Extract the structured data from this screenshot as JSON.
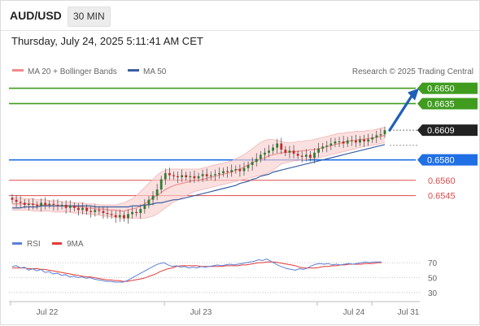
{
  "header": {
    "symbol": "AUD/USD",
    "timeframe": "30 MIN"
  },
  "datetime": "Thursday, July 24, 2025 5:11:41 AM CET",
  "legend": {
    "ma20": "MA 20 + Bollinger Bands",
    "ma50": "MA 50",
    "credit": "Research © 2025 Trading Central"
  },
  "rsi_legend": {
    "rsi": "RSI",
    "ma9": "9MA"
  },
  "colors": {
    "resistance": "#3f9c1f",
    "support": "#1f6fe5",
    "support_light": "#e04a4a",
    "ma50": "#3c5fa3",
    "ma20": "#f08a8a",
    "band_fill": "#f9cfcf",
    "candle_up": "#2e7d32",
    "candle_down": "#c62828",
    "rsi": "#5b7fd9",
    "rsi_ma": "#e53935",
    "current": "#222222",
    "arrow": "#1f5fb5"
  },
  "chart_data": [
    {
      "type": "candlestick",
      "series_names": [
        "MA 20 + Bollinger Bands",
        "MA 50"
      ],
      "x_ticks": [
        "Jul 22",
        "Jul 23",
        "Jul 24",
        "Jul 31"
      ],
      "ylim": [
        0.6505,
        0.666
      ],
      "levels": [
        {
          "value": 0.665,
          "label": "0.6650",
          "kind": "resistance"
        },
        {
          "value": 0.6635,
          "label": "0.6635",
          "kind": "resistance"
        },
        {
          "value": 0.6609,
          "label": "0.6609",
          "kind": "current"
        },
        {
          "value": 0.658,
          "label": "0.6580",
          "kind": "pivot"
        },
        {
          "value": 0.656,
          "label": "0.6560",
          "kind": "support"
        },
        {
          "value": 0.6545,
          "label": "0.6545",
          "kind": "support"
        }
      ],
      "close": [
        0.6541,
        0.6539,
        0.6538,
        0.6536,
        0.6537,
        0.6536,
        0.6535,
        0.6538,
        0.6536,
        0.6537,
        0.6536,
        0.6535,
        0.6536,
        0.6533,
        0.6535,
        0.6533,
        0.6531,
        0.6533,
        0.653,
        0.6529,
        0.6531,
        0.653,
        0.6528,
        0.6527,
        0.6526,
        0.6524,
        0.6526,
        0.6523,
        0.6527,
        0.6529,
        0.6528,
        0.6532,
        0.6536,
        0.6541,
        0.6545,
        0.6551,
        0.6561,
        0.6567,
        0.6565,
        0.6564,
        0.6563,
        0.6565,
        0.6563,
        0.6564,
        0.6562,
        0.6564,
        0.6566,
        0.6564,
        0.6565,
        0.6566,
        0.6567,
        0.6569,
        0.6568,
        0.657,
        0.6571,
        0.6569,
        0.6572,
        0.6575,
        0.6578,
        0.6581,
        0.6585,
        0.6587,
        0.6589,
        0.6592,
        0.6596,
        0.659,
        0.6587,
        0.6589,
        0.6586,
        0.6584,
        0.6583,
        0.6585,
        0.6582,
        0.6587,
        0.6591,
        0.6593,
        0.6594,
        0.6596,
        0.6598,
        0.6598,
        0.6596,
        0.6599,
        0.6599,
        0.6597,
        0.66,
        0.6598,
        0.66,
        0.6602,
        0.6604,
        0.6605,
        0.6609
      ],
      "ma20": [
        0.6537,
        0.6537,
        0.6537,
        0.6537,
        0.6537,
        0.6537,
        0.6536,
        0.6536,
        0.6536,
        0.6536,
        0.6535,
        0.6535,
        0.6535,
        0.6535,
        0.6535,
        0.6534,
        0.6534,
        0.6534,
        0.6533,
        0.6533,
        0.6532,
        0.6532,
        0.6532,
        0.6531,
        0.6531,
        0.6531,
        0.653,
        0.653,
        0.6531,
        0.6532,
        0.6533,
        0.6535,
        0.6537,
        0.654,
        0.6543,
        0.6545,
        0.6548,
        0.6551,
        0.6553,
        0.6555,
        0.6556,
        0.6557,
        0.6558,
        0.6559,
        0.656,
        0.656,
        0.6561,
        0.6562,
        0.6563,
        0.6564,
        0.6565,
        0.6566,
        0.6567,
        0.6568,
        0.657,
        0.6571,
        0.6573,
        0.6575,
        0.6577,
        0.6579,
        0.6581,
        0.6582,
        0.6584,
        0.6585,
        0.6586,
        0.6587,
        0.6587,
        0.6588,
        0.6588,
        0.6588,
        0.6589,
        0.6589,
        0.659,
        0.659,
        0.6591,
        0.6592,
        0.6593,
        0.6594,
        0.6595,
        0.6596,
        0.6597,
        0.6598,
        0.6599,
        0.6599,
        0.66,
        0.66,
        0.6601,
        0.6601,
        0.6602,
        0.6603,
        0.6604
      ],
      "bb_upper": [
        0.6543,
        0.6543,
        0.6543,
        0.6542,
        0.6542,
        0.6542,
        0.6541,
        0.6541,
        0.6541,
        0.654,
        0.654,
        0.654,
        0.6539,
        0.6539,
        0.6539,
        0.6538,
        0.6538,
        0.6538,
        0.6537,
        0.6537,
        0.6537,
        0.6536,
        0.6536,
        0.6536,
        0.6536,
        0.6536,
        0.6537,
        0.6538,
        0.654,
        0.6542,
        0.6545,
        0.6549,
        0.6553,
        0.6557,
        0.6561,
        0.6565,
        0.6568,
        0.657,
        0.6571,
        0.6571,
        0.6571,
        0.6571,
        0.6571,
        0.6571,
        0.6571,
        0.6571,
        0.6572,
        0.6573,
        0.6574,
        0.6575,
        0.6576,
        0.6577,
        0.6578,
        0.6579,
        0.6581,
        0.6583,
        0.6585,
        0.6588,
        0.6591,
        0.6594,
        0.6597,
        0.6599,
        0.66,
        0.66,
        0.6599,
        0.6598,
        0.6597,
        0.6597,
        0.6597,
        0.6598,
        0.6598,
        0.6599,
        0.6599,
        0.66,
        0.6601,
        0.6602,
        0.6603,
        0.6604,
        0.6605,
        0.6606,
        0.6606,
        0.6607,
        0.6607,
        0.6608,
        0.6608,
        0.6608,
        0.6609,
        0.6609,
        0.661,
        0.6611,
        0.6612
      ],
      "bb_lower": [
        0.6531,
        0.6531,
        0.6531,
        0.6531,
        0.6531,
        0.653,
        0.653,
        0.653,
        0.653,
        0.653,
        0.6529,
        0.6529,
        0.6529,
        0.6529,
        0.6529,
        0.6528,
        0.6528,
        0.6528,
        0.6527,
        0.6527,
        0.6526,
        0.6526,
        0.6525,
        0.6525,
        0.6524,
        0.6524,
        0.6523,
        0.6523,
        0.6523,
        0.6523,
        0.6523,
        0.6523,
        0.6523,
        0.6524,
        0.6525,
        0.6527,
        0.653,
        0.6533,
        0.6536,
        0.6539,
        0.6541,
        0.6543,
        0.6545,
        0.6547,
        0.6549,
        0.655,
        0.6551,
        0.6552,
        0.6553,
        0.6554,
        0.6555,
        0.6556,
        0.6557,
        0.6558,
        0.6559,
        0.656,
        0.6561,
        0.6562,
        0.6563,
        0.6564,
        0.6565,
        0.6566,
        0.6568,
        0.657,
        0.6573,
        0.6576,
        0.6577,
        0.6578,
        0.6579,
        0.6579,
        0.658,
        0.658,
        0.6581,
        0.6581,
        0.6582,
        0.6583,
        0.6584,
        0.6585,
        0.6586,
        0.6587,
        0.6588,
        0.6589,
        0.659,
        0.6591,
        0.6592,
        0.6593,
        0.6594,
        0.6594,
        0.6595,
        0.6596,
        0.6597
      ],
      "ma50": [
        0.6533,
        0.6533,
        0.6533,
        0.6534,
        0.6534,
        0.6534,
        0.6534,
        0.6535,
        0.6535,
        0.6535,
        0.6535,
        0.6535,
        0.6535,
        0.6535,
        0.6535,
        0.6535,
        0.6535,
        0.6535,
        0.6535,
        0.6535,
        0.6534,
        0.6534,
        0.6534,
        0.6534,
        0.6534,
        0.6534,
        0.6534,
        0.6534,
        0.6534,
        0.6535,
        0.6535,
        0.6535,
        0.6536,
        0.6536,
        0.6537,
        0.6538,
        0.6538,
        0.6539,
        0.654,
        0.6541,
        0.6541,
        0.6542,
        0.6543,
        0.6544,
        0.6545,
        0.6546,
        0.6547,
        0.6548,
        0.6549,
        0.655,
        0.6551,
        0.6552,
        0.6553,
        0.6554,
        0.6555,
        0.6557,
        0.6558,
        0.6559,
        0.6561,
        0.6562,
        0.6564,
        0.6565,
        0.6566,
        0.6568,
        0.6569,
        0.657,
        0.6571,
        0.6572,
        0.6573,
        0.6574,
        0.6575,
        0.6576,
        0.6577,
        0.6578,
        0.6579,
        0.658,
        0.6581,
        0.6582,
        0.6583,
        0.6584,
        0.6585,
        0.6586,
        0.6587,
        0.6588,
        0.6589,
        0.659,
        0.6591,
        0.6592,
        0.6593,
        0.6594,
        0.6595
      ],
      "forecast": {
        "from": 0.6609,
        "to": 0.665
      }
    },
    {
      "type": "line",
      "series_names": [
        "RSI",
        "9MA"
      ],
      "y_ticks": [
        70,
        50,
        30
      ],
      "ylim": [
        20,
        80
      ],
      "rsi": [
        65,
        66,
        63,
        64,
        60,
        62,
        59,
        61,
        57,
        58,
        55,
        56,
        53,
        54,
        51,
        52,
        50,
        51,
        49,
        50,
        48,
        47,
        46,
        45,
        45,
        44,
        44,
        44,
        46,
        49,
        52,
        55,
        58,
        61,
        64,
        67,
        69,
        70,
        67,
        65,
        66,
        64,
        65,
        63,
        64,
        63,
        65,
        64,
        65,
        66,
        67,
        66,
        67,
        68,
        67,
        68,
        69,
        70,
        71,
        72,
        74,
        73,
        75,
        72,
        69,
        66,
        64,
        62,
        61,
        60,
        62,
        61,
        63,
        66,
        68,
        69,
        68,
        69,
        67,
        68,
        67,
        68,
        69,
        68,
        69,
        70,
        71,
        70,
        71,
        71,
        71
      ],
      "ma9": [
        63,
        63,
        63,
        63,
        62,
        62,
        62,
        61,
        61,
        60,
        59,
        58,
        57,
        56,
        55,
        54,
        53,
        52,
        51,
        51,
        50,
        49,
        48,
        47,
        47,
        46,
        46,
        45,
        45,
        46,
        47,
        48,
        49,
        51,
        53,
        55,
        58,
        60,
        62,
        63,
        65,
        66,
        66,
        66,
        66,
        66,
        65,
        65,
        65,
        65,
        65,
        65,
        66,
        66,
        66,
        66,
        67,
        67,
        68,
        69,
        70,
        70,
        71,
        71,
        71,
        70,
        69,
        68,
        67,
        66,
        64,
        63,
        63,
        63,
        63,
        64,
        65,
        65,
        66,
        66,
        67,
        67,
        68,
        68,
        68,
        68,
        69,
        69,
        69,
        70,
        70
      ]
    }
  ]
}
